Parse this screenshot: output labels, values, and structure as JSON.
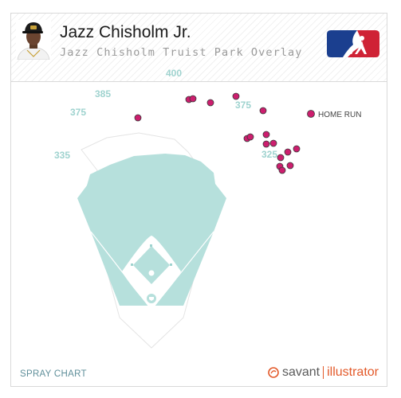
{
  "header": {
    "player_name": "Jazz Chisholm Jr.",
    "subtitle": "Jazz Chisholm Truist Park Overlay"
  },
  "footer": {
    "label": "SPRAY CHART",
    "brand_primary": "savant",
    "brand_secondary": "illustrator"
  },
  "chart_data": {
    "type": "scatter",
    "title": "SPRAY CHART",
    "legend": [
      {
        "label": "HOME RUN",
        "color": "#cc1e6e"
      }
    ],
    "legend_placement": "top-right",
    "field_color": "#b6e0dc",
    "infield_color": "#ffffff",
    "wall_distance_labels": [
      "335",
      "375",
      "385",
      "400",
      "375",
      "325"
    ],
    "points": [
      {
        "hc_x": 57,
        "hc_y": 78
      },
      {
        "hc_x": 121,
        "hc_y": 55
      },
      {
        "hc_x": 126,
        "hc_y": 54
      },
      {
        "hc_x": 148,
        "hc_y": 59
      },
      {
        "hc_x": 180,
        "hc_y": 51
      },
      {
        "hc_x": 214,
        "hc_y": 69
      },
      {
        "hc_x": 194,
        "hc_y": 104
      },
      {
        "hc_x": 198,
        "hc_y": 102
      },
      {
        "hc_x": 218,
        "hc_y": 99
      },
      {
        "hc_x": 218,
        "hc_y": 111
      },
      {
        "hc_x": 227,
        "hc_y": 110
      },
      {
        "hc_x": 245,
        "hc_y": 121
      },
      {
        "hc_x": 256,
        "hc_y": 117
      },
      {
        "hc_x": 236,
        "hc_y": 128
      },
      {
        "hc_x": 248,
        "hc_y": 138
      },
      {
        "hc_x": 235,
        "hc_y": 139
      },
      {
        "hc_x": 238,
        "hc_y": 144
      }
    ]
  },
  "colors": {
    "home_run": "#cc1e6e",
    "distance_label": "#9fd3cf",
    "footer_label": "#5f8f9a",
    "brand_accent": "#e35a2a"
  }
}
